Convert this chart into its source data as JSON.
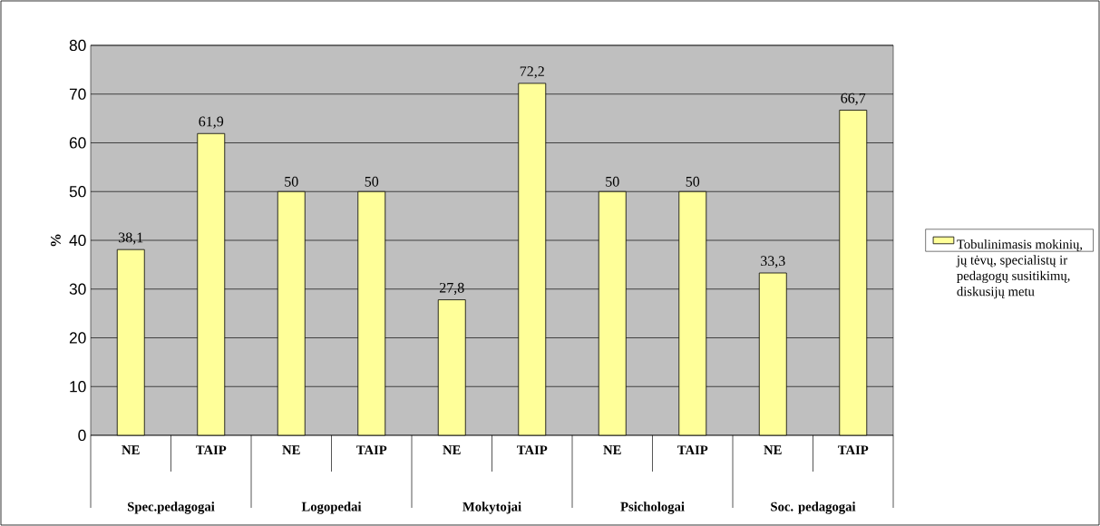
{
  "chart_data": {
    "type": "bar",
    "categories": [
      "NE",
      "TAIP",
      "NE",
      "TAIP",
      "NE",
      "TAIP",
      "NE",
      "TAIP",
      "NE",
      "TAIP"
    ],
    "annotations": [
      "Spec.pedagogai",
      "Logopedai",
      "Mokytojai",
      "Psichologai",
      "Soc. pedagogai"
    ],
    "ylabel": "%",
    "series": [
      {
        "name": "Tobulinimasis mokinių, jų tėvų, specialistų ir pedagogų susitikimų, diskusijų metu",
        "color": "#ffff99",
        "values": [
          38.1,
          61.9,
          50,
          50,
          27.8,
          72.2,
          50,
          50,
          33.3,
          66.7
        ]
      }
    ],
    "value_labels": [
      "38,1",
      "61,9",
      "50",
      "50",
      "27,8",
      "72,2",
      "50",
      "50",
      "33,3",
      "66,7"
    ],
    "ylim": [
      0,
      80
    ],
    "yticks": [
      0,
      10,
      20,
      30,
      40,
      50,
      60,
      70,
      80
    ],
    "grid": "y",
    "legend": "right"
  }
}
